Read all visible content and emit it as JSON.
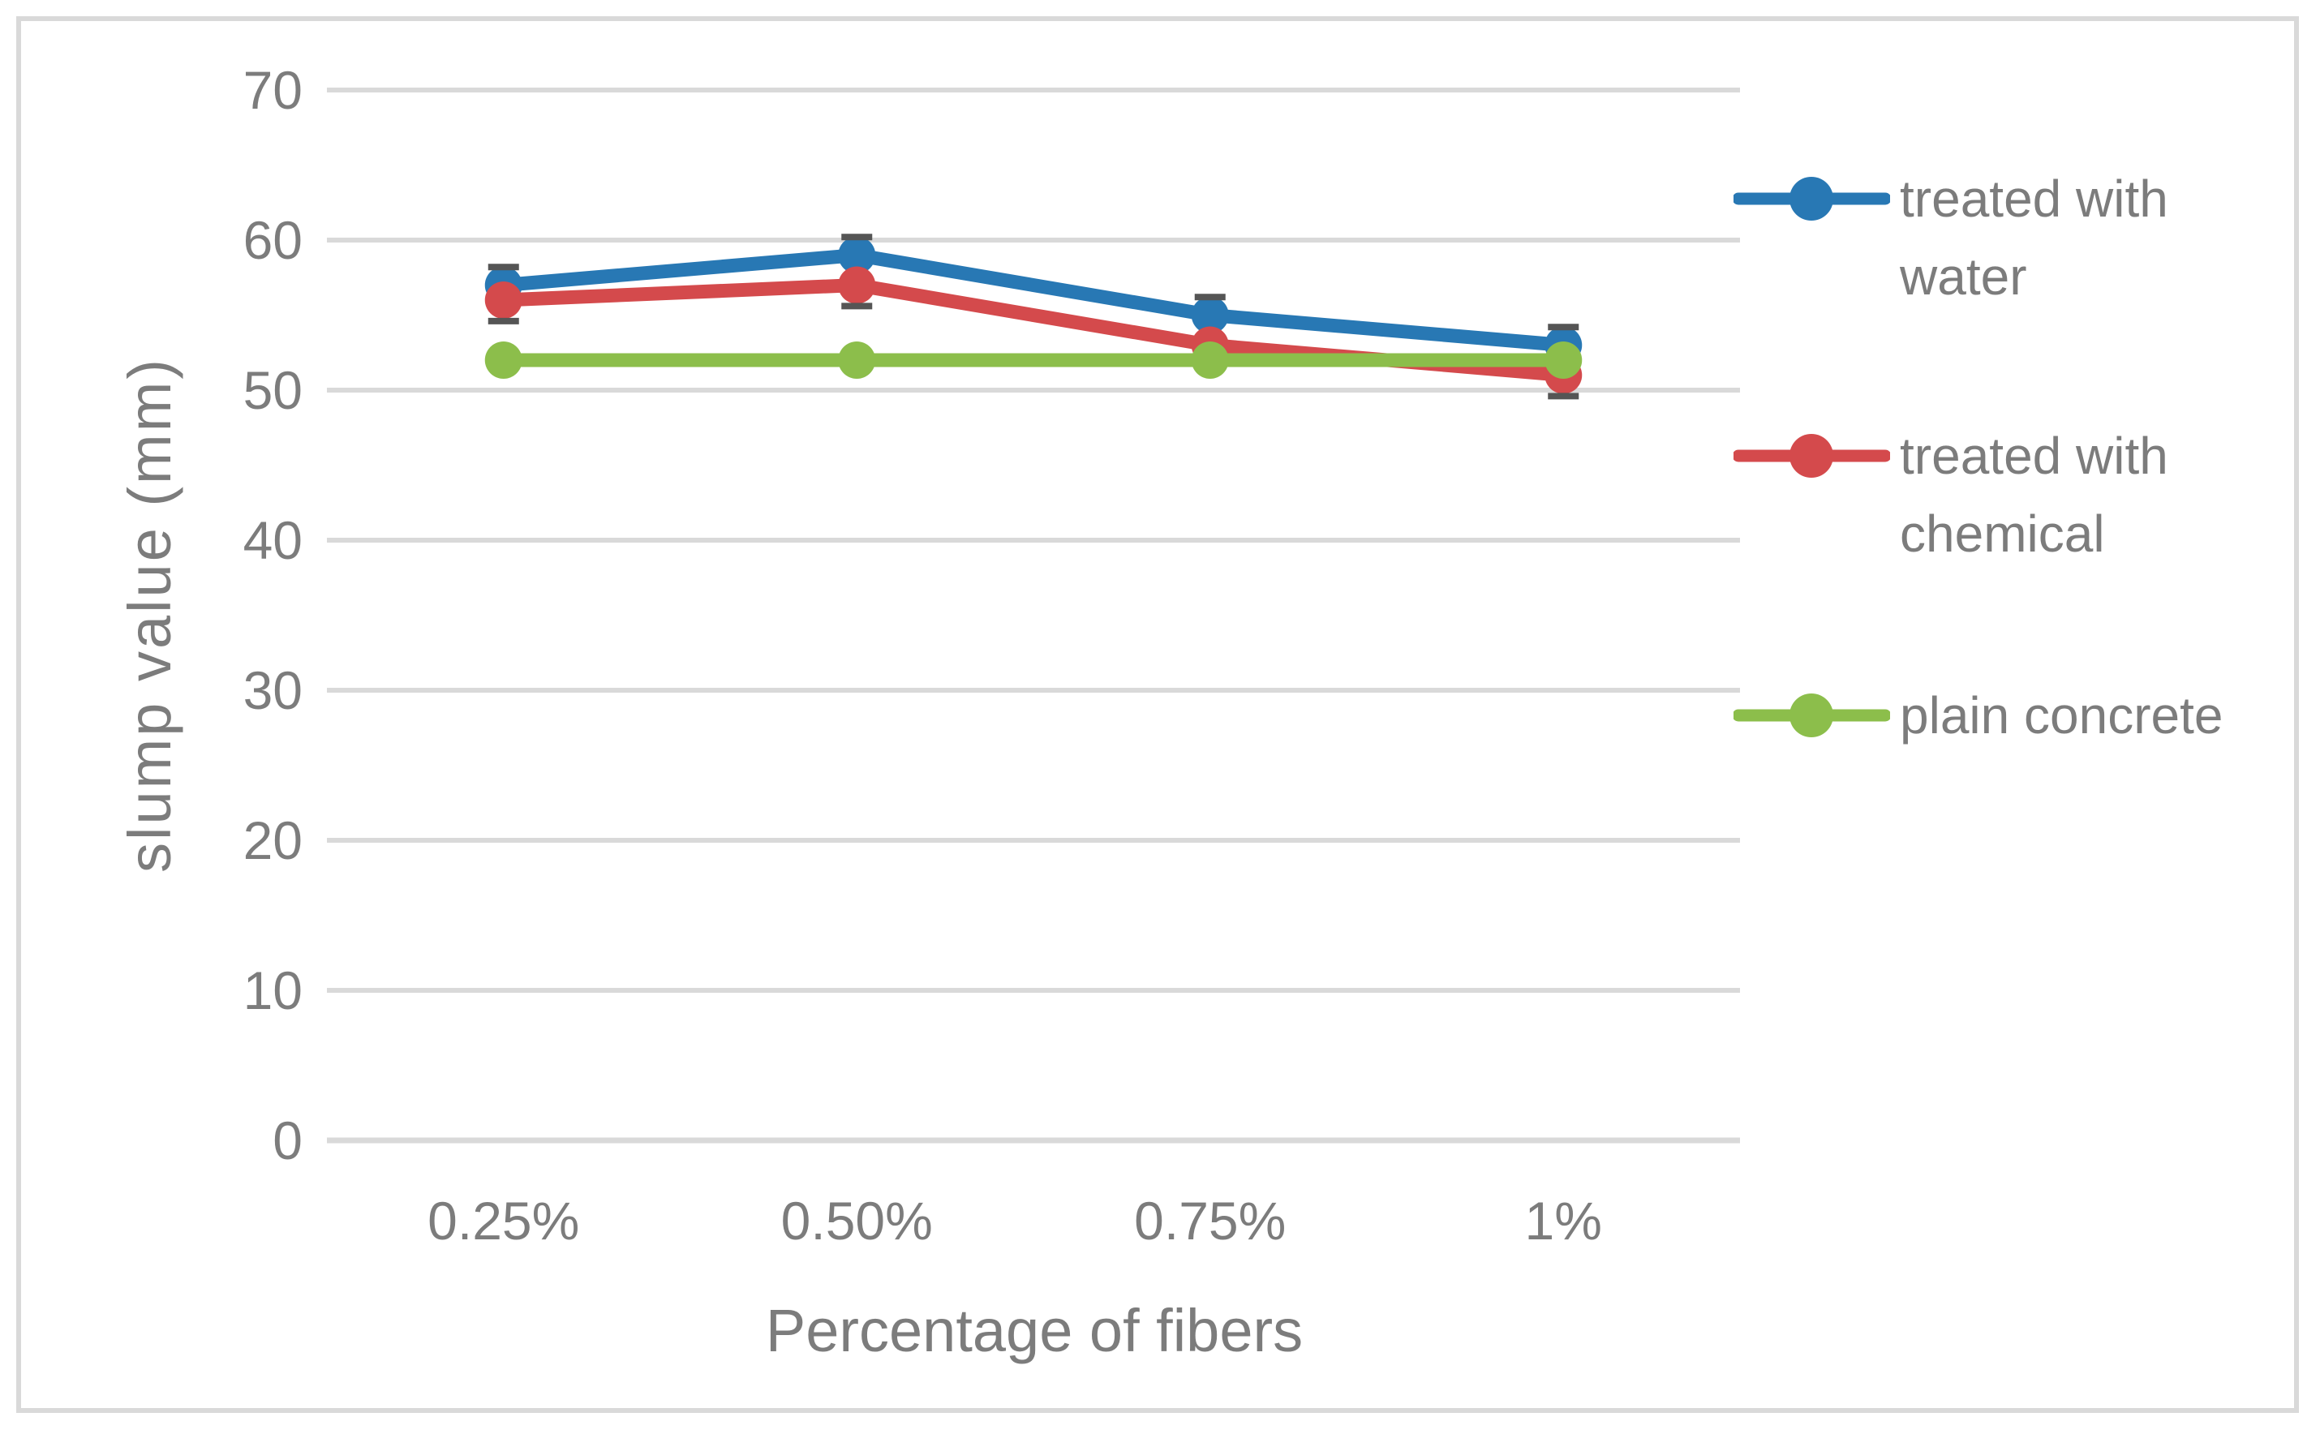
{
  "figure": {
    "background": "#FFFFFF",
    "border_color": "#D9D9D9",
    "text_color": "#7C7C7C",
    "gridline_color": "#D9D9D9",
    "error_bar_color": "#555555"
  },
  "chart_data": {
    "type": "line",
    "title": "",
    "xlabel": "Percentage of fibers",
    "ylabel": "slump value (mm)",
    "categories": [
      "0.25%",
      "0.50%",
      "0.75%",
      "1%"
    ],
    "series": [
      {
        "name": "treated with water",
        "legend_lines": [
          "treated with",
          "water"
        ],
        "color": "#2878B4",
        "values": [
          57,
          59,
          55,
          53
        ],
        "error_bars": {
          "direction": "plus",
          "value": 1.2
        }
      },
      {
        "name": "treated with chemical",
        "legend_lines": [
          "treated with",
          "chemical"
        ],
        "color": "#D44A4C",
        "values": [
          56,
          57,
          53,
          51
        ],
        "error_bars": {
          "direction": "minus",
          "value": 1.4
        }
      },
      {
        "name": "plain concrete",
        "legend_lines": [
          "plain concrete"
        ],
        "color": "#8CBE4B",
        "values": [
          52,
          52,
          52,
          52
        ],
        "error_bars": null
      }
    ],
    "yticks": [
      0,
      10,
      20,
      30,
      40,
      50,
      60,
      70
    ],
    "ylim": [
      0,
      70
    ],
    "grid": true,
    "legend_position": "right",
    "marker": "circle"
  }
}
